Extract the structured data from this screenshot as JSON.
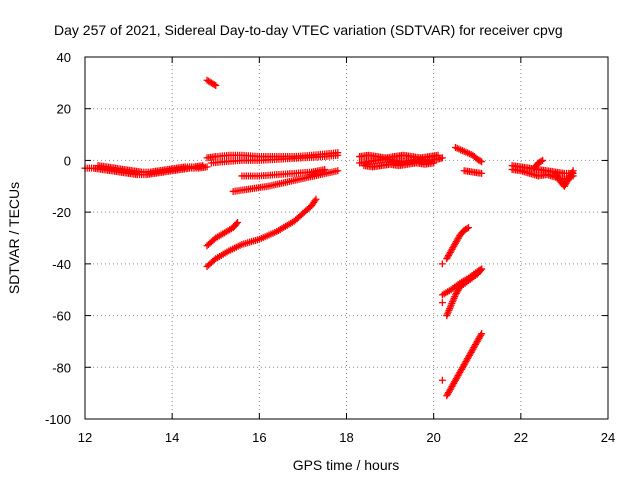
{
  "chart_data": {
    "type": "scatter",
    "title": "Day 257 of 2021, Sidereal Day-to-day VTEC variation (SDTVAR) for receiver cpvg",
    "xlabel": "GPS time / hours",
    "ylabel": "SDTVAR / TECUs",
    "xlim": [
      12,
      24
    ],
    "ylim": [
      -100,
      40
    ],
    "x_ticks": [
      "12",
      "14",
      "16",
      "18",
      "20",
      "22",
      "24"
    ],
    "y_ticks": [
      "40",
      "20",
      "0",
      "-20",
      "-40",
      "-60",
      "-80",
      "-100"
    ],
    "grid": true,
    "marker": "plus",
    "color": "#ff0000",
    "series": [
      {
        "segments": [
          [
            [
              12.0,
              -3.0
            ],
            [
              12.2,
              -3.0
            ],
            [
              12.4,
              -3.5
            ],
            [
              12.6,
              -4.0
            ],
            [
              12.8,
              -4.5
            ],
            [
              13.0,
              -5.0
            ],
            [
              13.2,
              -5.5
            ],
            [
              13.4,
              -5.5
            ],
            [
              13.6,
              -5.0
            ],
            [
              13.8,
              -4.5
            ],
            [
              14.0,
              -4.0
            ],
            [
              14.2,
              -3.5
            ],
            [
              14.4,
              -3.0
            ],
            [
              14.6,
              -3.0
            ],
            [
              14.8,
              -2.5
            ]
          ],
          [
            [
              12.3,
              -2.0
            ],
            [
              12.5,
              -2.5
            ],
            [
              12.7,
              -3.0
            ],
            [
              12.9,
              -3.5
            ],
            [
              13.1,
              -4.0
            ],
            [
              13.3,
              -4.5
            ],
            [
              13.5,
              -4.5
            ],
            [
              13.7,
              -4.0
            ],
            [
              13.9,
              -3.5
            ],
            [
              14.1,
              -3.0
            ],
            [
              14.3,
              -2.5
            ],
            [
              14.5,
              -2.5
            ],
            [
              14.7,
              -2.0
            ]
          ],
          [
            [
              14.8,
              31.0
            ],
            [
              14.9,
              30.0
            ],
            [
              15.0,
              29.0
            ]
          ],
          [
            [
              14.8,
              1.0
            ],
            [
              15.0,
              1.5
            ],
            [
              15.3,
              2.0
            ],
            [
              15.6,
              2.0
            ],
            [
              16.0,
              1.5
            ],
            [
              16.4,
              1.5
            ],
            [
              16.8,
              1.5
            ],
            [
              17.2,
              2.0
            ],
            [
              17.5,
              2.5
            ],
            [
              17.8,
              3.0
            ]
          ],
          [
            [
              14.9,
              -1.0
            ],
            [
              15.2,
              -0.5
            ],
            [
              15.6,
              0.0
            ],
            [
              16.0,
              0.0
            ],
            [
              16.5,
              0.5
            ],
            [
              17.0,
              1.0
            ],
            [
              17.5,
              1.5
            ],
            [
              17.8,
              2.0
            ]
          ],
          [
            [
              15.4,
              -12.0
            ],
            [
              15.8,
              -11.0
            ],
            [
              16.2,
              -10.0
            ],
            [
              16.6,
              -8.5
            ],
            [
              17.0,
              -7.0
            ],
            [
              17.4,
              -5.5
            ],
            [
              17.8,
              -4.0
            ]
          ],
          [
            [
              15.6,
              -6.0
            ],
            [
              16.0,
              -6.0
            ],
            [
              16.4,
              -5.5
            ],
            [
              16.8,
              -5.0
            ],
            [
              17.2,
              -4.5
            ],
            [
              17.5,
              -3.5
            ]
          ],
          [
            [
              14.8,
              -33.0
            ],
            [
              15.0,
              -30.0
            ],
            [
              15.2,
              -28.0
            ],
            [
              15.4,
              -26.0
            ],
            [
              15.5,
              -24.0
            ]
          ],
          [
            [
              14.8,
              -41.0
            ],
            [
              15.0,
              -38.0
            ],
            [
              15.3,
              -35.0
            ],
            [
              15.6,
              -32.5
            ],
            [
              16.0,
              -30.5
            ],
            [
              16.4,
              -27.5
            ],
            [
              16.8,
              -23.5
            ],
            [
              17.0,
              -20.5
            ],
            [
              17.2,
              -17.5
            ],
            [
              17.3,
              -15.0
            ]
          ],
          [
            [
              18.3,
              -1.0
            ],
            [
              18.5,
              -0.5
            ],
            [
              18.7,
              0.0
            ],
            [
              18.9,
              0.5
            ],
            [
              19.1,
              0.0
            ],
            [
              19.3,
              -0.5
            ],
            [
              19.5,
              0.0
            ],
            [
              19.7,
              0.5
            ],
            [
              19.9,
              0.0
            ],
            [
              20.1,
              0.5
            ],
            [
              20.2,
              1.0
            ]
          ],
          [
            [
              18.3,
              1.5
            ],
            [
              18.5,
              2.0
            ],
            [
              18.7,
              1.5
            ],
            [
              18.9,
              1.0
            ],
            [
              19.1,
              1.5
            ],
            [
              19.3,
              2.0
            ],
            [
              19.5,
              1.5
            ],
            [
              19.7,
              1.0
            ],
            [
              19.9,
              1.5
            ],
            [
              20.1,
              2.0
            ]
          ],
          [
            [
              18.4,
              -2.0
            ],
            [
              18.6,
              -2.5
            ],
            [
              18.8,
              -2.0
            ],
            [
              19.0,
              -1.5
            ],
            [
              19.2,
              -2.0
            ],
            [
              19.4,
              -1.5
            ],
            [
              19.6,
              -1.0
            ],
            [
              19.8,
              -1.5
            ],
            [
              20.0,
              -1.0
            ]
          ],
          [
            [
              20.5,
              5.0
            ],
            [
              20.7,
              3.5
            ],
            [
              20.9,
              2.0
            ],
            [
              21.0,
              0.5
            ],
            [
              21.1,
              -0.5
            ]
          ],
          [
            [
              20.7,
              -4.0
            ],
            [
              20.9,
              -4.5
            ],
            [
              21.1,
              -5.0
            ]
          ],
          [
            [
              20.2,
              -40.0
            ]
          ],
          [
            [
              20.3,
              -38.0
            ],
            [
              20.4,
              -35.0
            ],
            [
              20.5,
              -32.0
            ],
            [
              20.6,
              -29.0
            ],
            [
              20.7,
              -27.0
            ],
            [
              20.8,
              -26.0
            ]
          ],
          [
            [
              20.2,
              -55.0
            ]
          ],
          [
            [
              20.3,
              -60.0
            ],
            [
              20.4,
              -56.0
            ],
            [
              20.5,
              -52.0
            ],
            [
              20.6,
              -49.0
            ],
            [
              20.8,
              -46.5
            ],
            [
              21.0,
              -44.0
            ],
            [
              21.1,
              -42.0
            ]
          ],
          [
            [
              20.2,
              -52.0
            ],
            [
              20.4,
              -50.0
            ],
            [
              20.6,
              -47.5
            ],
            [
              20.8,
              -45.5
            ],
            [
              21.0,
              -43.0
            ],
            [
              21.1,
              -42.0
            ]
          ],
          [
            [
              20.2,
              -85.0
            ]
          ],
          [
            [
              20.3,
              -91.0
            ],
            [
              20.4,
              -88.0
            ],
            [
              20.5,
              -85.0
            ],
            [
              20.6,
              -82.0
            ],
            [
              20.7,
              -79.0
            ],
            [
              20.8,
              -76.0
            ],
            [
              20.9,
              -73.0
            ],
            [
              21.0,
              -70.0
            ],
            [
              21.1,
              -67.0
            ]
          ],
          [
            [
              21.8,
              -2.0
            ],
            [
              22.0,
              -2.5
            ],
            [
              22.2,
              -3.0
            ],
            [
              22.4,
              -3.5
            ],
            [
              22.6,
              -4.0
            ],
            [
              22.8,
              -4.5
            ],
            [
              23.0,
              -5.0
            ],
            [
              23.2,
              -5.0
            ]
          ],
          [
            [
              21.8,
              -3.5
            ],
            [
              22.0,
              -4.0
            ],
            [
              22.2,
              -5.0
            ],
            [
              22.4,
              -6.0
            ],
            [
              22.6,
              -5.5
            ],
            [
              22.8,
              -6.5
            ],
            [
              23.0,
              -7.5
            ],
            [
              23.2,
              -6.0
            ]
          ],
          [
            [
              22.3,
              -3.0
            ],
            [
              22.4,
              -1.0
            ],
            [
              22.5,
              0.0
            ]
          ],
          [
            [
              22.8,
              -5.0
            ],
            [
              22.9,
              -8.0
            ],
            [
              23.0,
              -10.0
            ],
            [
              23.1,
              -7.0
            ],
            [
              23.2,
              -4.0
            ]
          ]
        ]
      }
    ]
  }
}
